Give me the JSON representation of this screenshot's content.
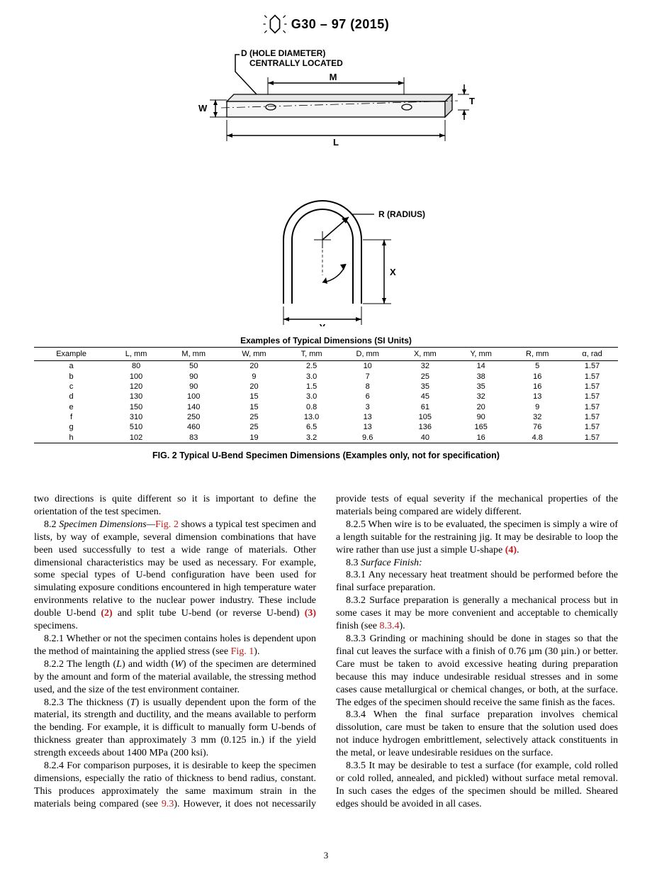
{
  "header": {
    "designation": "G30 – 97 (2015)"
  },
  "diagram": {
    "top": {
      "d_label_1": "D (HOLE DIAMETER)",
      "d_label_2": "CENTRALLY LOCATED",
      "M": "M",
      "W": "W",
      "T": "T",
      "L": "L"
    },
    "bottom": {
      "R": "R (RADIUS)",
      "X": "X",
      "Y": "Y"
    }
  },
  "table": {
    "title": "Examples of Typical Dimensions (SI Units)",
    "columns": [
      "Example",
      "L, mm",
      "M, mm",
      "W, mm",
      "T, mm",
      "D, mm",
      "X, mm",
      "Y, mm",
      "R, mm",
      "α, rad"
    ],
    "rows": [
      [
        "a",
        "80",
        "50",
        "20",
        "2.5",
        "10",
        "32",
        "14",
        "5",
        "1.57"
      ],
      [
        "b",
        "100",
        "90",
        "9",
        "3.0",
        "7",
        "25",
        "38",
        "16",
        "1.57"
      ],
      [
        "c",
        "120",
        "90",
        "20",
        "1.5",
        "8",
        "35",
        "35",
        "16",
        "1.57"
      ],
      [
        "d",
        "130",
        "100",
        "15",
        "3.0",
        "6",
        "45",
        "32",
        "13",
        "1.57"
      ],
      [
        "e",
        "150",
        "140",
        "15",
        "0.8",
        "3",
        "61",
        "20",
        "9",
        "1.57"
      ],
      [
        "f",
        "310",
        "250",
        "25",
        "13.0",
        "13",
        "105",
        "90",
        "32",
        "1.57"
      ],
      [
        "g",
        "510",
        "460",
        "25",
        "6.5",
        "13",
        "136",
        "165",
        "76",
        "1.57"
      ],
      [
        "h",
        "102",
        "83",
        "19",
        "3.2",
        "9.6",
        "40",
        "16",
        "4.8",
        "1.57"
      ]
    ],
    "caption": "FIG. 2  Typical U-Bend Specimen Dimensions (Examples only, not for specification)"
  },
  "body": {
    "p_lead": "two directions is quite different so it is important to define the orientation of the test specimen.",
    "p82_a": "8.2 ",
    "p82_i": "Specimen Dimensions—",
    "p82_link": "Fig. 2",
    "p82_b": " shows a typical test specimen and lists, by way of example, several dimension combinations that have been used successfully to test a wide range of materials. Other dimensional characteristics may be used as necessary. For example, some special types of U-bend configuration have been used for simulating exposure conditions encountered in high temperature water environments relative to the nuclear power industry. These include double U-bend ",
    "p82_ref2": "(2)",
    "p82_c": " and split tube U-bend (or reverse U-bend) ",
    "p82_ref3": "(3)",
    "p82_d": " specimens.",
    "p821_a": "8.2.1 Whether or not the specimen contains holes is dependent upon the method of maintaining the applied stress (see ",
    "p821_link": "Fig. 1",
    "p821_b": ").",
    "p822": "8.2.2 The length (",
    "p822_L": "L",
    "p822_b": ") and width (",
    "p822_W": "W",
    "p822_c": ") of the specimen are determined by the amount and form of the material available, the stressing method used, and the size of the test environment container.",
    "p823_a": "8.2.3 The thickness (",
    "p823_T": "T",
    "p823_b": ") is usually dependent upon the form of the material, its strength and ductility, and the means available to perform the bending. For example, it is difficult to manually form U-bends of thickness greater than approximately 3 mm (0.125 in.) if the yield strength exceeds about 1400 MPa (200 ksi).",
    "p824_a": "8.2.4 For comparison purposes, it is desirable to keep the specimen dimensions, especially the ratio of thickness to bend radius, constant. This produces approximately the same maximum strain in the materials being compared (see ",
    "p824_link": "9.3",
    "p824_b": "). However, it does not necessarily provide tests of equal severity if the mechanical properties of the materials being compared are widely different.",
    "p825_a": "8.2.5 When wire is to be evaluated, the specimen is simply a wire of a length suitable for the restraining jig. It may be desirable to loop the wire rather than use just a simple U-shape ",
    "p825_ref": "(4)",
    "p825_b": ".",
    "p83_a": "8.3 ",
    "p83_i": "Surface Finish:",
    "p831": "8.3.1 Any necessary heat treatment should be performed before the final surface preparation.",
    "p832_a": "8.3.2 Surface preparation is generally a mechanical process but in some cases it may be more convenient and acceptable to chemically finish (see ",
    "p832_link": "8.3.4",
    "p832_b": ").",
    "p833": "8.3.3 Grinding or machining should be done in stages so that the final cut leaves the surface with a finish of 0.76 µm (30 µin.) or better. Care must be taken to avoid excessive heating during preparation because this may induce undesirable residual stresses and in some cases cause metallurgical or chemical changes, or both, at the surface. The edges of the specimen should receive the same finish as the faces.",
    "p834": "8.3.4 When the final surface preparation involves chemical dissolution, care must be taken to ensure that the solution used does not induce hydrogen embrittlement, selectively attack constituents in the metal, or leave undesirable residues on the surface.",
    "p835": "8.3.5 It may be desirable to test a surface (for example, cold rolled or cold rolled, annealed, and pickled) without surface metal removal. In such cases the edges of the specimen should be milled. Sheared edges should be avoided in all cases."
  },
  "page_number": "3",
  "colors": {
    "text": "#000000",
    "link": "#c41818",
    "background": "#ffffff"
  }
}
